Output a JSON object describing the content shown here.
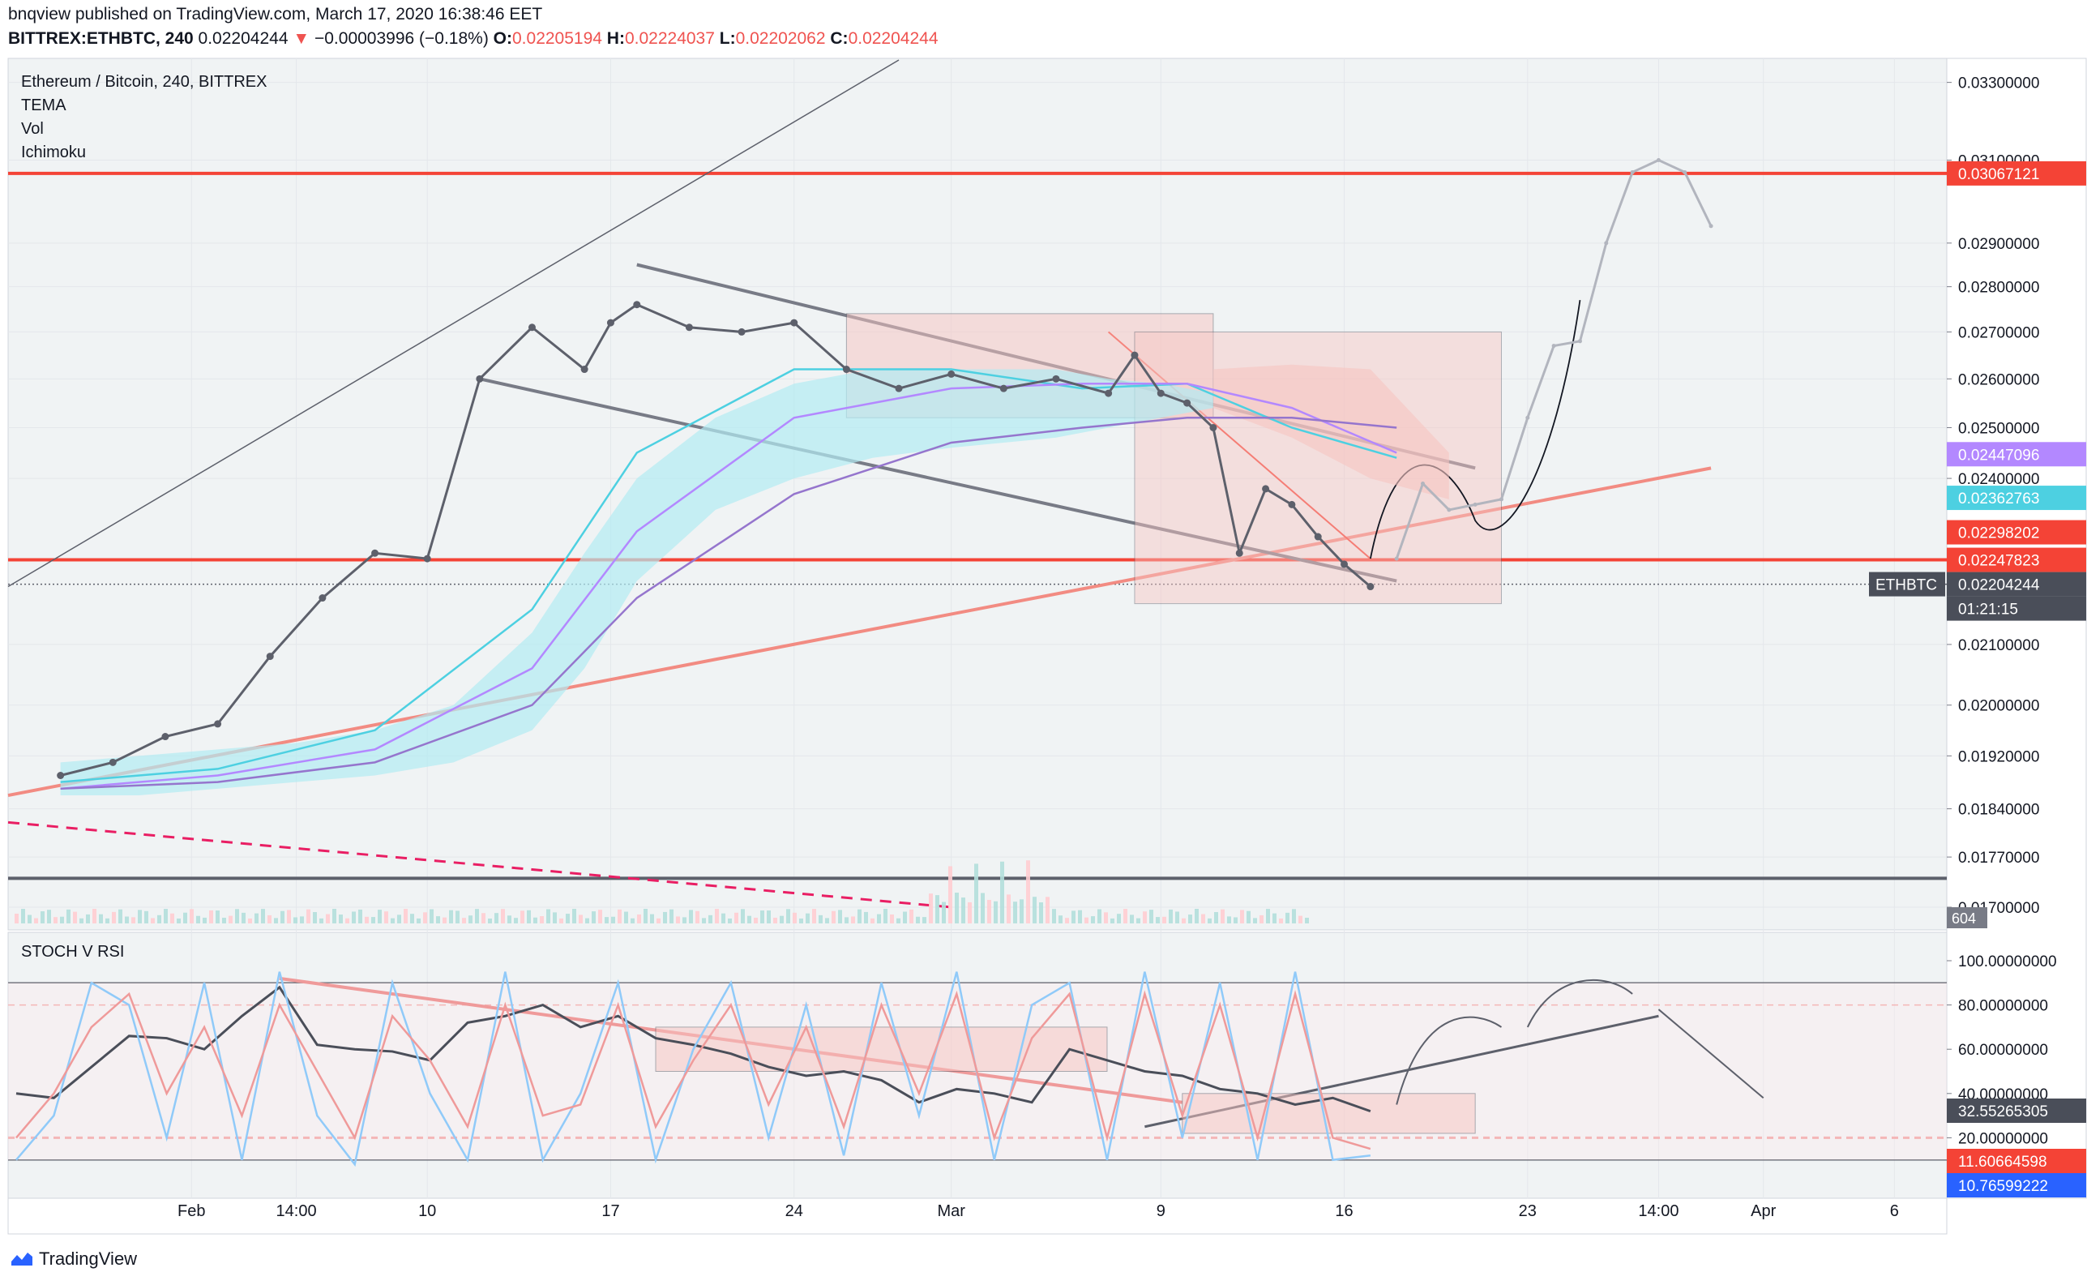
{
  "header": {
    "publisher_line": "bnqview published on TradingView.com, March 17, 2020 16:38:46 EET",
    "symbol": "BITTREX:ETHBTC, 240",
    "last": "0.02204244",
    "change_arrow": "▼",
    "change": "−0.00003996 (−0.18%)",
    "o_label": "O:",
    "o_value": "0.02205194",
    "h_label": "H:",
    "h_value": "0.02224037",
    "l_label": "L:",
    "l_value": "0.02202062",
    "c_label": "C:",
    "c_value": "0.02204244"
  },
  "main_legend": {
    "title": "Ethereum / Bitcoin, 240, BITTREX",
    "items": [
      "TEMA",
      "Vol",
      "Ichimoku"
    ]
  },
  "lower_legend": {
    "title": "STOCH V RSI"
  },
  "footer": {
    "brand": "TradingView"
  },
  "colors": {
    "price": "#5d606b",
    "projection": "#b2b5be",
    "ichimoku_cloud": "#b2ebf2",
    "red_line": "#f44336",
    "salmon_line": "#f28b82",
    "cyan": "#4dd0e1",
    "purple": "#b388ff",
    "accent_red_box": "#f7c5c2"
  },
  "chart_data": [
    {
      "type": "line",
      "title": "Ethereum / Bitcoin, 240, BITTREX",
      "symbol": "ETHBTC",
      "x_tick_labels": [
        "Feb",
        "14:00",
        "10",
        "17",
        "24",
        "Mar",
        "9",
        "16",
        "23",
        "14:00",
        "Apr",
        "6"
      ],
      "y_tick_labels": [
        "0.03300000",
        "0.03100000",
        "0.02900000",
        "0.02800000",
        "0.02700000",
        "0.02600000",
        "0.02500000",
        "0.02400000",
        "0.02100000",
        "0.02000000",
        "0.01920000",
        "0.01840000",
        "0.01770000",
        "0.01700000"
      ],
      "y_scale": "log",
      "ylim": [
        0.017,
        0.0336
      ],
      "price_labels": [
        {
          "label": "",
          "value": "0.03067121",
          "color": "#f44336"
        },
        {
          "label": "",
          "value": "0.02447096",
          "color": "#b388ff"
        },
        {
          "label": "",
          "value": "0.02362763",
          "color": "#4dd0e1"
        },
        {
          "label": "",
          "value": "0.02298202",
          "color": "#f44336"
        },
        {
          "label": "",
          "value": "0.02247823",
          "color": "#f44336"
        },
        {
          "label": "ETHBTC",
          "value": "0.02204244",
          "color": "#4a4e59"
        },
        {
          "label": "",
          "value": "01:21:15",
          "color": "#4a4e59"
        }
      ],
      "horizontal_levels": [
        0.03067121,
        0.02247823,
        0.0174
      ],
      "series": [
        {
          "name": "ETHBTC",
          "x": [
            "Jan 27",
            "Jan 29",
            "Jan 31",
            "Feb 2",
            "Feb 4",
            "Feb 6",
            "Feb 8",
            "Feb 10",
            "Feb 12",
            "Feb 14",
            "Feb 16",
            "Feb 17",
            "Feb 18",
            "Feb 20",
            "Feb 22",
            "Feb 24",
            "Feb 26",
            "Feb 28",
            "Mar 1",
            "Mar 3",
            "Mar 5",
            "Mar 7",
            "Mar 8",
            "Mar 9",
            "Mar 10",
            "Mar 11",
            "Mar 12",
            "Mar 13",
            "Mar 14",
            "Mar 15",
            "Mar 16",
            "Mar 17"
          ],
          "values": [
            0.0189,
            0.0191,
            0.0195,
            0.0197,
            0.0208,
            0.0218,
            0.0226,
            0.0225,
            0.026,
            0.0271,
            0.0262,
            0.0272,
            0.0276,
            0.0271,
            0.027,
            0.0272,
            0.0262,
            0.0258,
            0.0261,
            0.0258,
            0.026,
            0.0257,
            0.0265,
            0.0257,
            0.0255,
            0.025,
            0.0226,
            0.0238,
            0.0235,
            0.0229,
            0.0224,
            0.022
          ]
        },
        {
          "name": "Projection",
          "x": [
            "Mar 18",
            "Mar 19",
            "Mar 20",
            "Mar 21",
            "Mar 22",
            "Mar 23",
            "Mar 24",
            "Mar 25",
            "Mar 26",
            "Mar 27",
            "Mar 28",
            "Mar 29",
            "Mar 30"
          ],
          "values": [
            0.0225,
            0.0239,
            0.0234,
            0.0235,
            0.0236,
            0.0252,
            0.0267,
            0.0268,
            0.029,
            0.0307,
            0.031,
            0.0307,
            0.0294
          ]
        }
      ],
      "volume_label": "604"
    },
    {
      "type": "line",
      "title": "STOCH V RSI",
      "y_tick_labels": [
        "100.00000000",
        "80.00000000",
        "60.00000000",
        "40.00000000",
        "20.00000000"
      ],
      "ylim": [
        0,
        100
      ],
      "levels": [
        90,
        80,
        20,
        10
      ],
      "value_labels": [
        {
          "value": "32.55265305",
          "color": "#4a4e59"
        },
        {
          "value": "11.60664598",
          "color": "#f44336"
        },
        {
          "value": "10.76599222",
          "color": "#2962ff"
        }
      ],
      "series": [
        {
          "name": "RSI",
          "values": [
            40,
            38,
            52,
            66,
            65,
            60,
            75,
            88,
            62,
            60,
            59,
            55,
            72,
            75,
            80,
            70,
            75,
            65,
            62,
            58,
            52,
            48,
            50,
            46,
            36,
            42,
            40,
            36,
            60,
            55,
            50,
            48,
            42,
            40,
            35,
            38,
            32
          ]
        },
        {
          "name": "%K",
          "values": [
            10,
            30,
            90,
            80,
            20,
            90,
            10,
            95,
            30,
            8,
            90,
            40,
            10,
            95,
            10,
            40,
            90,
            10,
            60,
            90,
            20,
            80,
            12,
            90,
            30,
            95,
            10,
            80,
            90,
            10,
            95,
            20,
            90,
            10,
            95,
            10,
            12
          ]
        },
        {
          "name": "%D",
          "values": [
            20,
            40,
            70,
            85,
            40,
            70,
            30,
            80,
            50,
            20,
            75,
            55,
            25,
            80,
            30,
            35,
            80,
            25,
            55,
            80,
            35,
            70,
            25,
            80,
            40,
            85,
            20,
            65,
            85,
            20,
            85,
            30,
            80,
            20,
            85,
            20,
            15
          ]
        }
      ]
    }
  ]
}
